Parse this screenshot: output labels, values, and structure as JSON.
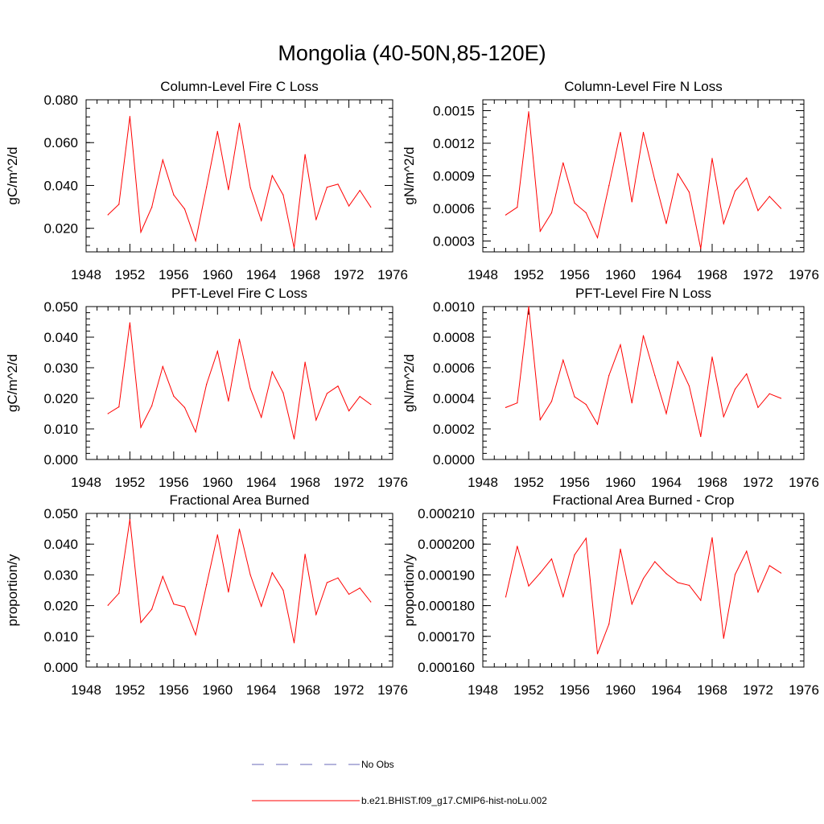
{
  "figure": {
    "title": "Mongolia (40-50N,85-120E)",
    "legend": {
      "obs_label": "No Obs",
      "obs_color": "#6a6ab8",
      "model_label": "b.e21.BHIST.f09_g17.CMIP6-hist-noLu.002",
      "model_color": "#ff0000"
    }
  },
  "chart_data": [
    {
      "type": "line",
      "title": "Column-Level Fire C Loss",
      "ylabel": "gC/m^2/d",
      "xlim": [
        1948,
        1976
      ],
      "ylim": [
        0.009,
        0.08
      ],
      "xticks": [
        "1948",
        "1952",
        "1956",
        "1960",
        "1964",
        "1968",
        "1972",
        "1976"
      ],
      "yticks": [
        "0.020",
        "0.040",
        "0.060",
        "0.080"
      ],
      "x": [
        1950,
        1951,
        1952,
        1953,
        1954,
        1955,
        1956,
        1957,
        1958,
        1959,
        1960,
        1961,
        1962,
        1963,
        1964,
        1965,
        1966,
        1967,
        1968,
        1969,
        1970,
        1971,
        1972,
        1973,
        1974
      ],
      "series": [
        {
          "name": "b.e21.BHIST.f09_g17.CMIP6-hist-noLu.002",
          "color": "#ff0000",
          "values": [
            0.0263,
            0.0312,
            0.0722,
            0.0182,
            0.0298,
            0.0519,
            0.0356,
            0.029,
            0.0141,
            0.0393,
            0.0652,
            0.038,
            0.069,
            0.039,
            0.0236,
            0.0446,
            0.0356,
            0.0108,
            0.0544,
            0.024,
            0.0392,
            0.0406,
            0.0304,
            0.0377,
            0.0299
          ]
        }
      ]
    },
    {
      "type": "line",
      "title": "Column-Level Fire N Loss",
      "ylabel": "gN/m^2/d",
      "xlim": [
        1948,
        1976
      ],
      "ylim": [
        0.0002,
        0.0016
      ],
      "xticks": [
        "1948",
        "1952",
        "1956",
        "1960",
        "1964",
        "1968",
        "1972",
        "1976"
      ],
      "yticks": [
        "0.0003",
        "0.0006",
        "0.0009",
        "0.0012",
        "0.0015"
      ],
      "x": [
        1950,
        1951,
        1952,
        1953,
        1954,
        1955,
        1956,
        1957,
        1958,
        1959,
        1960,
        1961,
        1962,
        1963,
        1964,
        1965,
        1966,
        1967,
        1968,
        1969,
        1970,
        1971,
        1972,
        1973,
        1974
      ],
      "series": [
        {
          "name": "b.e21.BHIST.f09_g17.CMIP6-hist-noLu.002",
          "color": "#ff0000",
          "values": [
            0.00054,
            0.00061,
            0.00149,
            0.00039,
            0.00056,
            0.00102,
            0.00065,
            0.00056,
            0.00033,
            0.00081,
            0.0013,
            0.00066,
            0.0013,
            0.00086,
            0.00046,
            0.00092,
            0.00075,
            0.00023,
            0.00106,
            0.00046,
            0.00076,
            0.00088,
            0.00058,
            0.00071,
            0.0006
          ]
        }
      ]
    },
    {
      "type": "line",
      "title": "PFT-Level Fire C Loss",
      "ylabel": "gC/m^2/d",
      "xlim": [
        1948,
        1976
      ],
      "ylim": [
        0.0,
        0.05
      ],
      "xticks": [
        "1948",
        "1952",
        "1956",
        "1960",
        "1964",
        "1968",
        "1972",
        "1976"
      ],
      "yticks": [
        "0.000",
        "0.010",
        "0.020",
        "0.030",
        "0.040",
        "0.050"
      ],
      "x": [
        1950,
        1951,
        1952,
        1953,
        1954,
        1955,
        1956,
        1957,
        1958,
        1959,
        1960,
        1961,
        1962,
        1963,
        1964,
        1965,
        1966,
        1967,
        1968,
        1969,
        1970,
        1971,
        1972,
        1973,
        1974
      ],
      "series": [
        {
          "name": "b.e21.BHIST.f09_g17.CMIP6-hist-noLu.002",
          "color": "#ff0000",
          "values": [
            0.015,
            0.0172,
            0.0447,
            0.0105,
            0.0175,
            0.0304,
            0.0207,
            0.017,
            0.009,
            0.0246,
            0.0354,
            0.0191,
            0.0393,
            0.0232,
            0.0138,
            0.0287,
            0.0218,
            0.0067,
            0.0318,
            0.0129,
            0.0216,
            0.024,
            0.0159,
            0.0206,
            0.018
          ]
        }
      ]
    },
    {
      "type": "line",
      "title": "PFT-Level Fire N Loss",
      "ylabel": "gN/m^2/d",
      "xlim": [
        1948,
        1976
      ],
      "ylim": [
        0.0,
        0.001
      ],
      "xticks": [
        "1948",
        "1952",
        "1956",
        "1960",
        "1964",
        "1968",
        "1972",
        "1976"
      ],
      "yticks": [
        "0.0000",
        "0.0002",
        "0.0004",
        "0.0006",
        "0.0008",
        "0.0010"
      ],
      "x": [
        1950,
        1951,
        1952,
        1953,
        1954,
        1955,
        1956,
        1957,
        1958,
        1959,
        1960,
        1961,
        1962,
        1963,
        1964,
        1965,
        1966,
        1967,
        1968,
        1969,
        1970,
        1971,
        1972,
        1973,
        1974
      ],
      "series": [
        {
          "name": "b.e21.BHIST.f09_g17.CMIP6-hist-noLu.002",
          "color": "#ff0000",
          "values": [
            0.00034,
            0.00037,
            0.001,
            0.00026,
            0.00038,
            0.00065,
            0.00041,
            0.00036,
            0.00023,
            0.00055,
            0.00075,
            0.00037,
            0.00081,
            0.00055,
            0.0003,
            0.00064,
            0.00048,
            0.00015,
            0.00067,
            0.00028,
            0.00046,
            0.00056,
            0.00034,
            0.00043,
            0.0004
          ]
        }
      ]
    },
    {
      "type": "line",
      "title": "Fractional Area Burned",
      "ylabel": "proportion/y",
      "xlim": [
        1948,
        1976
      ],
      "ylim": [
        0.0,
        0.05
      ],
      "xticks": [
        "1948",
        "1952",
        "1956",
        "1960",
        "1964",
        "1968",
        "1972",
        "1976"
      ],
      "yticks": [
        "0.000",
        "0.010",
        "0.020",
        "0.030",
        "0.040",
        "0.050"
      ],
      "x": [
        1950,
        1951,
        1952,
        1953,
        1954,
        1955,
        1956,
        1957,
        1958,
        1959,
        1960,
        1961,
        1962,
        1963,
        1964,
        1965,
        1966,
        1967,
        1968,
        1969,
        1970,
        1971,
        1972,
        1973,
        1974
      ],
      "series": [
        {
          "name": "b.e21.BHIST.f09_g17.CMIP6-hist-noLu.002",
          "color": "#ff0000",
          "values": [
            0.0201,
            0.024,
            0.048,
            0.0145,
            0.0188,
            0.0295,
            0.0205,
            0.0196,
            0.0105,
            0.0268,
            0.043,
            0.0244,
            0.0449,
            0.03,
            0.0198,
            0.0307,
            0.025,
            0.0079,
            0.0367,
            0.0171,
            0.0275,
            0.029,
            0.0237,
            0.0257,
            0.0212
          ]
        }
      ]
    },
    {
      "type": "line",
      "title": "Fractional Area Burned - Crop",
      "ylabel": "proportion/y",
      "xlim": [
        1948,
        1976
      ],
      "ylim": [
        0.00016,
        0.00021
      ],
      "xticks": [
        "1948",
        "1952",
        "1956",
        "1960",
        "1964",
        "1968",
        "1972",
        "1976"
      ],
      "yticks": [
        "0.000160",
        "0.000170",
        "0.000180",
        "0.000190",
        "0.000200",
        "0.000210"
      ],
      "x": [
        1950,
        1951,
        1952,
        1953,
        1954,
        1955,
        1956,
        1957,
        1958,
        1959,
        1960,
        1961,
        1962,
        1963,
        1964,
        1965,
        1966,
        1967,
        1968,
        1969,
        1970,
        1971,
        1972,
        1973,
        1974
      ],
      "series": [
        {
          "name": "b.e21.BHIST.f09_g17.CMIP6-hist-noLu.002",
          "color": "#ff0000",
          "values": [
            0.0001828,
            0.0001993,
            0.0001864,
            0.0001906,
            0.0001952,
            0.0001829,
            0.0001965,
            0.0002019,
            0.0001643,
            0.000174,
            0.0001984,
            0.0001805,
            0.0001888,
            0.0001943,
            0.0001904,
            0.0001875,
            0.0001866,
            0.0001817,
            0.0002021,
            0.0001694,
            0.0001901,
            0.0001977,
            0.0001844,
            0.000193,
            0.0001906
          ]
        }
      ]
    }
  ]
}
